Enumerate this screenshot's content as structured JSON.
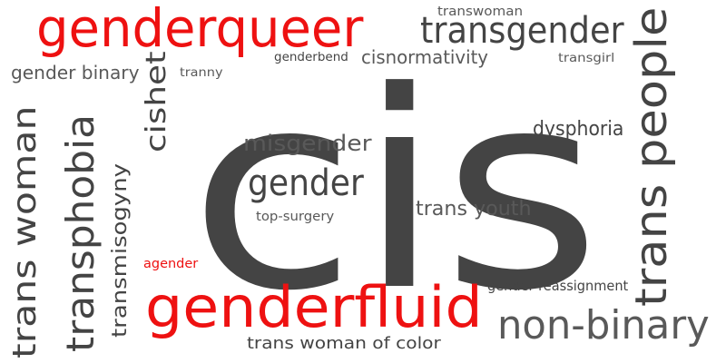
{
  "colors": {
    "dark": "#444444",
    "red": "#ee1111",
    "mid": "#595959"
  },
  "words": [
    {
      "text": "cis",
      "color": "dark"
    },
    {
      "text": "genderqueer",
      "color": "red"
    },
    {
      "text": "genderfluid",
      "color": "red"
    },
    {
      "text": "transgender",
      "color": "dark"
    },
    {
      "text": "trans people",
      "color": "dark"
    },
    {
      "text": "non-binary",
      "color": "mid"
    },
    {
      "text": "transphobia",
      "color": "dark"
    },
    {
      "text": "trans woman",
      "color": "dark"
    },
    {
      "text": "gender",
      "color": "dark"
    },
    {
      "text": "cishet",
      "color": "dark"
    },
    {
      "text": "misgender",
      "color": "mid"
    },
    {
      "text": "transmisogyny",
      "color": "dark"
    },
    {
      "text": "trans youth",
      "color": "mid"
    },
    {
      "text": "dysphoria",
      "color": "dark"
    },
    {
      "text": "cisnormativity",
      "color": "mid"
    },
    {
      "text": "gender binary",
      "color": "mid"
    },
    {
      "text": "trans woman of color",
      "color": "dark"
    },
    {
      "text": "gender reassignment",
      "color": "dark"
    },
    {
      "text": "top-surgery",
      "color": "mid"
    },
    {
      "text": "transwoman",
      "color": "mid"
    },
    {
      "text": "genderbend",
      "color": "dark"
    },
    {
      "text": "transgirl",
      "color": "mid"
    },
    {
      "text": "tranny",
      "color": "mid"
    },
    {
      "text": "agender",
      "color": "red"
    }
  ]
}
